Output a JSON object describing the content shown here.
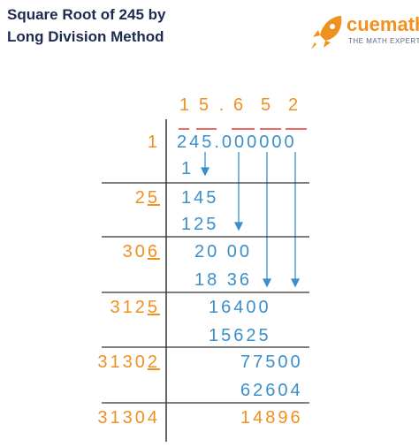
{
  "header": {
    "title_line1": "Square Root of 245 by",
    "title_line2": "Long Division Method"
  },
  "logo": {
    "brand": "cuemath",
    "tagline": "THE MATH EXPERT"
  },
  "division": {
    "quotient": [
      "1",
      "5",
      ".",
      "6",
      "5",
      "2"
    ],
    "steps": [
      {
        "divisor": [
          "1"
        ],
        "remainder": "245.000000",
        "subtract": "1"
      },
      {
        "divisor": [
          "2",
          "5"
        ],
        "remainder": "145",
        "subtract": "125"
      },
      {
        "divisor": [
          "30",
          "6"
        ],
        "remainder": "20 00",
        "subtract": "18 36"
      },
      {
        "divisor": [
          "312",
          "5"
        ],
        "remainder": "16400",
        "subtract": "15625"
      },
      {
        "divisor": [
          "3130",
          "2"
        ],
        "remainder": "77500",
        "subtract": "62604"
      },
      {
        "divisor": [
          "31304"
        ],
        "remainder": "14896"
      }
    ]
  }
}
